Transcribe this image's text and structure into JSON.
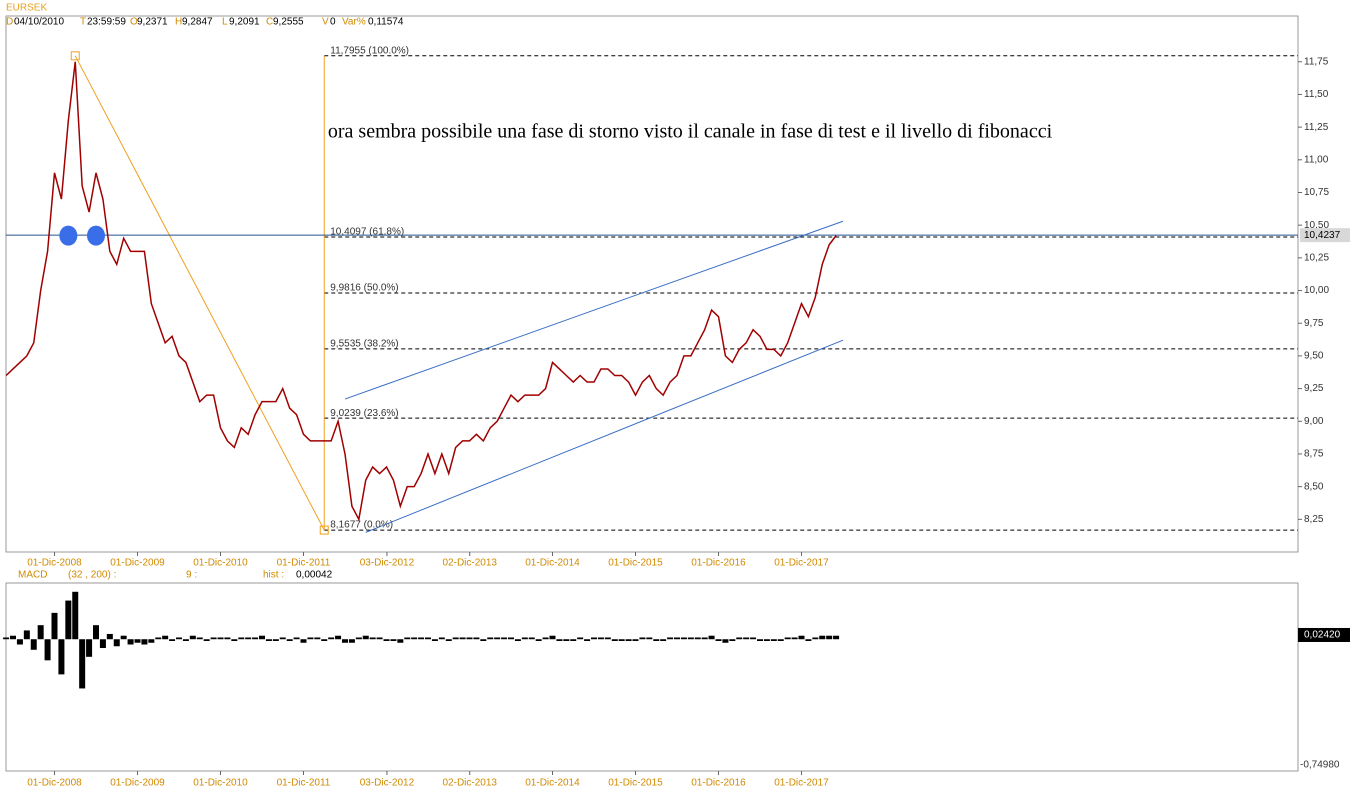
{
  "header": {
    "symbol": "EURSEK",
    "date_label": "D",
    "date": "04/10/2010",
    "time_label": "T",
    "time": "23:59:59",
    "open_label": "O",
    "open": "9,2371",
    "high_label": "H",
    "high": "9,2847",
    "low_label": "L",
    "low": "9,2091",
    "close_label": "C",
    "close": "9,2555",
    "volume_label": "V",
    "volume": "0",
    "var_label": "Var%",
    "var": "0,11574"
  },
  "chart_data": [
    {
      "type": "line",
      "annotation": "ora sembra possibile una fase di storno visto il canale in fase di test e il livello di fibonacci",
      "x": [
        "2008-05",
        "2008-06",
        "2008-07",
        "2008-08",
        "2008-09",
        "2008-10",
        "2008-11",
        "2008-12",
        "2009-01",
        "2009-02",
        "2009-03",
        "2009-04",
        "2009-05",
        "2009-06",
        "2009-07",
        "2009-08",
        "2009-09",
        "2009-10",
        "2009-11",
        "2009-12",
        "2010-01",
        "2010-02",
        "2010-03",
        "2010-04",
        "2010-05",
        "2010-06",
        "2010-07",
        "2010-08",
        "2010-09",
        "2010-10",
        "2010-11",
        "2010-12",
        "2011-01",
        "2011-02",
        "2011-03",
        "2011-04",
        "2011-05",
        "2011-06",
        "2011-07",
        "2011-08",
        "2011-09",
        "2011-10",
        "2011-11",
        "2011-12",
        "2012-01",
        "2012-02",
        "2012-03",
        "2012-04",
        "2012-05",
        "2012-06",
        "2012-07",
        "2012-08",
        "2012-09",
        "2012-10",
        "2012-11",
        "2012-12",
        "2013-01",
        "2013-02",
        "2013-03",
        "2013-04",
        "2013-05",
        "2013-06",
        "2013-07",
        "2013-08",
        "2013-09",
        "2013-10",
        "2013-11",
        "2013-12",
        "2014-01",
        "2014-02",
        "2014-03",
        "2014-04",
        "2014-05",
        "2014-06",
        "2014-07",
        "2014-08",
        "2014-09",
        "2014-10",
        "2014-11",
        "2014-12",
        "2015-01",
        "2015-02",
        "2015-03",
        "2015-04",
        "2015-05",
        "2015-06",
        "2015-07",
        "2015-08",
        "2015-09",
        "2015-10",
        "2015-11",
        "2015-12",
        "2016-01",
        "2016-02",
        "2016-03",
        "2016-04",
        "2016-05",
        "2016-06",
        "2016-07",
        "2016-08",
        "2016-09",
        "2016-10",
        "2016-11",
        "2016-12",
        "2017-01",
        "2017-02",
        "2017-03",
        "2017-04",
        "2017-05",
        "2017-06",
        "2017-07",
        "2017-08",
        "2017-09",
        "2017-10",
        "2017-11",
        "2017-12",
        "2018-01",
        "2018-02",
        "2018-03",
        "2018-04",
        "2018-05"
      ],
      "series": [
        {
          "color": "#a00000",
          "values": [
            9.35,
            9.4,
            9.45,
            9.5,
            9.6,
            10.0,
            10.3,
            10.9,
            10.7,
            11.3,
            11.75,
            10.8,
            10.6,
            10.9,
            10.7,
            10.3,
            10.2,
            10.4,
            10.3,
            10.3,
            10.3,
            9.9,
            9.75,
            9.6,
            9.65,
            9.5,
            9.45,
            9.3,
            9.15,
            9.2,
            9.2,
            8.95,
            8.85,
            8.8,
            8.95,
            8.9,
            9.05,
            9.15,
            9.15,
            9.15,
            9.25,
            9.1,
            9.05,
            8.9,
            8.85,
            8.85,
            8.85,
            8.85,
            9.0,
            8.75,
            8.35,
            8.25,
            8.55,
            8.65,
            8.6,
            8.65,
            8.55,
            8.35,
            8.5,
            8.5,
            8.6,
            8.75,
            8.6,
            8.75,
            8.6,
            8.8,
            8.85,
            8.85,
            8.9,
            8.85,
            8.95,
            9.0,
            9.1,
            9.2,
            9.15,
            9.2,
            9.2,
            9.2,
            9.25,
            9.45,
            9.4,
            9.35,
            9.3,
            9.35,
            9.3,
            9.3,
            9.4,
            9.4,
            9.35,
            9.35,
            9.3,
            9.2,
            9.3,
            9.35,
            9.25,
            9.2,
            9.3,
            9.35,
            9.5,
            9.5,
            9.6,
            9.7,
            9.85,
            9.8,
            9.5,
            9.45,
            9.55,
            9.6,
            9.7,
            9.65,
            9.55,
            9.55,
            9.5,
            9.6,
            9.75,
            9.9,
            9.8,
            9.95,
            10.2,
            10.35,
            10.42
          ]
        }
      ],
      "ylim": [
        8.0,
        12.1
      ],
      "yticks": [
        {
          "value": 8.25,
          "label": "8,25"
        },
        {
          "value": 8.5,
          "label": "8,50"
        },
        {
          "value": 8.75,
          "label": "8,75"
        },
        {
          "value": 9.0,
          "label": "9,00"
        },
        {
          "value": 9.25,
          "label": "9,25"
        },
        {
          "value": 9.5,
          "label": "9,50"
        },
        {
          "value": 9.75,
          "label": "9,75"
        },
        {
          "value": 10.0,
          "label": "10,00"
        },
        {
          "value": 10.25,
          "label": "10,25"
        },
        {
          "value": 10.5,
          "label": "10,50"
        },
        {
          "value": 10.75,
          "label": "10,75"
        },
        {
          "value": 11.0,
          "label": "11,00"
        },
        {
          "value": 11.25,
          "label": "11,25"
        },
        {
          "value": 11.5,
          "label": "11,50"
        },
        {
          "value": 11.75,
          "label": "11,75"
        }
      ],
      "xticks": [
        {
          "value": "2008-12-01",
          "label": "01-Dic-2008"
        },
        {
          "value": "2009-12-01",
          "label": "01-Dic-2009"
        },
        {
          "value": "2010-12-01",
          "label": "01-Dic-2010"
        },
        {
          "value": "2011-12-01",
          "label": "01-Dic-2011"
        },
        {
          "value": "2012-12-03",
          "label": "03-Dic-2012"
        },
        {
          "value": "2013-12-02",
          "label": "02-Dic-2013"
        },
        {
          "value": "2014-12-01",
          "label": "01-Dic-2014"
        },
        {
          "value": "2015-12-01",
          "label": "01-Dic-2015"
        },
        {
          "value": "2016-12-01",
          "label": "01-Dic-2016"
        },
        {
          "value": "2017-12-01",
          "label": "01-Dic-2017"
        }
      ],
      "fibonacci": {
        "start": "2009-03",
        "end": "2012-03",
        "color": "#f0a020",
        "levels": [
          {
            "value": 11.7955,
            "label": "11,7955 (100.0%)"
          },
          {
            "value": 10.4097,
            "label": "10,4097 (61.8%)"
          },
          {
            "value": 9.9816,
            "label": "9,9816 (50.0%)"
          },
          {
            "value": 9.5535,
            "label": "9,5535 (38.2%)"
          },
          {
            "value": 9.0239,
            "label": "9,0239 (23.6%)"
          },
          {
            "value": 8.1677,
            "label": "8,1677 (0.0%)"
          }
        ]
      },
      "channel": {
        "color": "#3a6fc4",
        "lines": [
          {
            "x": [
              "2012-06",
              "2018-06"
            ],
            "values": [
              9.17,
              10.53
            ]
          },
          {
            "x": [
              "2012-09",
              "2018-06"
            ],
            "values": [
              8.15,
              9.62
            ]
          }
        ]
      },
      "level_line": {
        "value": 10.4237,
        "label": "10,4237",
        "color": "#24508f"
      },
      "markers": {
        "color": "#3a6ee8",
        "x": [
          "2009-02",
          "2009-06"
        ],
        "values": [
          10.42,
          10.42
        ]
      }
    },
    {
      "type": "bar",
      "title": "MACD",
      "params": "(32 , 200) :",
      "signal": "9 :",
      "hist_label": "hist :",
      "hist_value": "0,00042",
      "color": "#000000",
      "values": [
        0.01,
        0.02,
        -0.03,
        0.05,
        -0.06,
        0.08,
        -0.12,
        0.15,
        -0.2,
        0.22,
        0.27,
        -0.28,
        -0.1,
        0.08,
        -0.05,
        0.03,
        -0.04,
        0.02,
        -0.03,
        -0.02,
        -0.03,
        -0.02,
        0.01,
        0.02,
        -0.01,
        0.01,
        -0.01,
        0.02,
        0.01,
        -0.01,
        0.01,
        0.01,
        0.01,
        -0.01,
        0.01,
        0.01,
        0.01,
        0.02,
        -0.01,
        -0.01,
        0.01,
        -0.01,
        0.01,
        -0.02,
        0.01,
        0.01,
        -0.01,
        0.01,
        0.02,
        -0.02,
        -0.02,
        0.01,
        0.02,
        0.01,
        0.01,
        -0.01,
        -0.01,
        -0.02,
        0.01,
        0.01,
        0.01,
        0.01,
        -0.01,
        0.01,
        -0.01,
        0.01,
        0.01,
        0.01,
        0.01,
        -0.01,
        0.01,
        0.01,
        0.01,
        0.01,
        -0.01,
        0.01,
        0.01,
        -0.01,
        0.01,
        0.02,
        -0.01,
        -0.01,
        -0.01,
        0.01,
        -0.01,
        0.01,
        0.01,
        0.01,
        -0.01,
        -0.01,
        -0.01,
        -0.01,
        0.01,
        0.01,
        -0.01,
        -0.01,
        0.01,
        0.01,
        0.01,
        0.01,
        0.01,
        0.01,
        0.02,
        -0.01,
        -0.02,
        -0.01,
        0.01,
        0.01,
        0.01,
        -0.01,
        -0.01,
        -0.01,
        -0.01,
        0.01,
        0.01,
        0.02,
        -0.01,
        0.01,
        0.02,
        0.02,
        0.02
      ],
      "ylim": [
        -0.7498,
        0.32
      ],
      "yticks": [
        {
          "value": -0.7498,
          "label": "-0,74980"
        }
      ],
      "last_value": {
        "value": 0.0242,
        "label": "0,02420"
      }
    }
  ]
}
